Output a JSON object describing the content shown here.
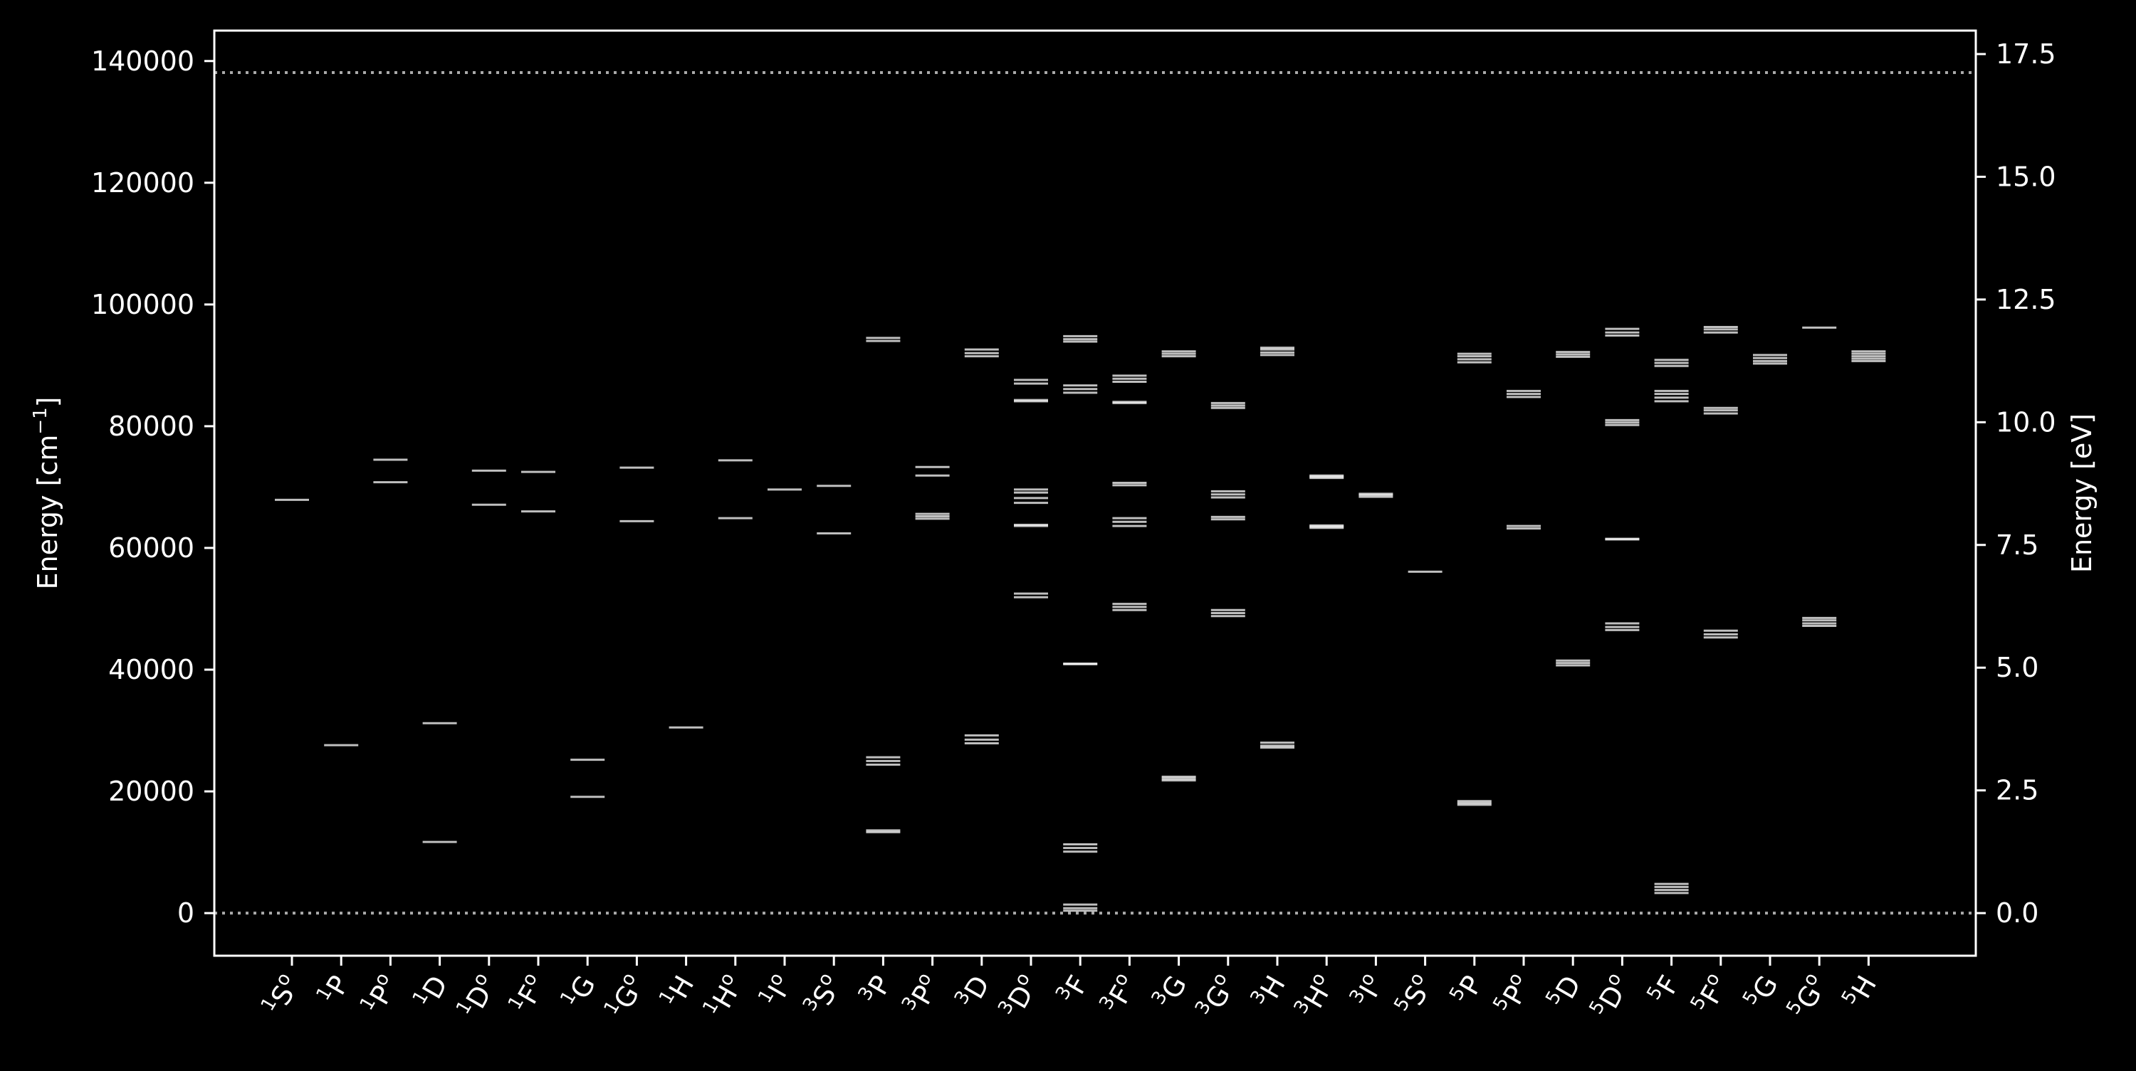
{
  "colors": {
    "background": "#000000",
    "axes": "#ffffff",
    "levels": "#ffffff",
    "reference_lines": "#aaaaaa"
  },
  "chart_data": {
    "type": "scatter",
    "mark": "horizontal-level-lines",
    "title": "",
    "ylabel_left": {
      "main": "Energy [cm",
      "sup": "−1",
      "close": "]"
    },
    "ylabel_right": "Energy [eV]",
    "ylim_left": [
      -7000,
      145000
    ],
    "ylim_right_ev": [
      -0.868,
      17.978
    ],
    "yticks_left": [
      0,
      20000,
      40000,
      60000,
      80000,
      100000,
      120000,
      140000
    ],
    "yticks_right": [
      "0.0",
      "2.5",
      "5.0",
      "7.5",
      "10.0",
      "12.5",
      "15.0",
      "17.5"
    ],
    "reference_lines_cm": [
      0,
      138100
    ],
    "grid": false,
    "categories": [
      {
        "mult": "1",
        "L": "S",
        "odd": true
      },
      {
        "mult": "1",
        "L": "P",
        "odd": false
      },
      {
        "mult": "1",
        "L": "P",
        "odd": true
      },
      {
        "mult": "1",
        "L": "D",
        "odd": false
      },
      {
        "mult": "1",
        "L": "D",
        "odd": true
      },
      {
        "mult": "1",
        "L": "F",
        "odd": true
      },
      {
        "mult": "1",
        "L": "G",
        "odd": false
      },
      {
        "mult": "1",
        "L": "G",
        "odd": true
      },
      {
        "mult": "1",
        "L": "H",
        "odd": false
      },
      {
        "mult": "1",
        "L": "H",
        "odd": true
      },
      {
        "mult": "1",
        "L": "I",
        "odd": true
      },
      {
        "mult": "3",
        "L": "S",
        "odd": true
      },
      {
        "mult": "3",
        "L": "P",
        "odd": false
      },
      {
        "mult": "3",
        "L": "P",
        "odd": true
      },
      {
        "mult": "3",
        "L": "D",
        "odd": false
      },
      {
        "mult": "3",
        "L": "D",
        "odd": true
      },
      {
        "mult": "3",
        "L": "F",
        "odd": false
      },
      {
        "mult": "3",
        "L": "F",
        "odd": true
      },
      {
        "mult": "3",
        "L": "G",
        "odd": false
      },
      {
        "mult": "3",
        "L": "G",
        "odd": true
      },
      {
        "mult": "3",
        "L": "H",
        "odd": false
      },
      {
        "mult": "3",
        "L": "H",
        "odd": true
      },
      {
        "mult": "3",
        "L": "I",
        "odd": true
      },
      {
        "mult": "5",
        "L": "S",
        "odd": true
      },
      {
        "mult": "5",
        "L": "P",
        "odd": false
      },
      {
        "mult": "5",
        "L": "P",
        "odd": true
      },
      {
        "mult": "5",
        "L": "D",
        "odd": false
      },
      {
        "mult": "5",
        "L": "D",
        "odd": true
      },
      {
        "mult": "5",
        "L": "F",
        "odd": false
      },
      {
        "mult": "5",
        "L": "F",
        "odd": true
      },
      {
        "mult": "5",
        "L": "G",
        "odd": false
      },
      {
        "mult": "5",
        "L": "G",
        "odd": true
      },
      {
        "mult": "5",
        "L": "H",
        "odd": false
      }
    ],
    "levels_cm": [
      [
        67900
      ],
      [
        27600
      ],
      [
        70800,
        74500
      ],
      [
        11700,
        31200
      ],
      [
        67100,
        72700
      ],
      [
        66000,
        72500
      ],
      [
        19100,
        25200
      ],
      [
        64400,
        73200
      ],
      [
        30500
      ],
      [
        64900,
        74400
      ],
      [
        69600
      ],
      [
        62400,
        70200
      ],
      [
        13300,
        13600,
        24400,
        25000,
        25600,
        94000,
        94500
      ],
      [
        64800,
        65200,
        65600,
        71900,
        73300
      ],
      [
        27900,
        28500,
        29200,
        91500,
        92000,
        92600
      ],
      [
        51900,
        52500,
        63600,
        63800,
        67400,
        68200,
        69100,
        69600,
        84100,
        84300,
        87000,
        87600
      ],
      [
        400,
        800,
        1400,
        10100,
        10700,
        11300,
        40900,
        41000,
        85500,
        86100,
        86700,
        93900,
        94300,
        94800
      ],
      [
        49800,
        50300,
        50800,
        63600,
        64300,
        64900,
        70300,
        70700,
        83800,
        84000,
        87300,
        87800,
        88300
      ],
      [
        21800,
        22100,
        22400,
        91500,
        91900,
        92300
      ],
      [
        48800,
        49300,
        49800,
        64700,
        65100,
        68300,
        68800,
        69300,
        83000,
        83400,
        83800
      ],
      [
        27200,
        27500,
        28000,
        91700,
        92100,
        92600,
        92900
      ],
      [
        71500,
        71700,
        71900,
        63300,
        63500,
        63700
      ],
      [
        68400,
        68700,
        68900
      ],
      [
        56100
      ],
      [
        17800,
        18100,
        18400,
        90500,
        91000,
        91500,
        91900
      ],
      [
        63200,
        63600,
        84800,
        85300,
        85800
      ],
      [
        40700,
        41100,
        41500,
        91400,
        91800,
        92200
      ],
      [
        61400,
        61500,
        46500,
        47000,
        47600,
        80200,
        80600,
        81000,
        94900,
        95400,
        96000
      ],
      [
        3300,
        3800,
        4300,
        4800,
        84100,
        84700,
        85300,
        85800,
        89900,
        90400,
        90900
      ],
      [
        45300,
        45800,
        46400,
        82100,
        82600,
        83000,
        95400,
        95900,
        96300
      ],
      [
        90300,
        90700,
        91200,
        91700
      ],
      [
        47200,
        47600,
        48100,
        48500,
        96200
      ],
      [
        90700,
        91100,
        91500,
        91900,
        92300
      ]
    ]
  }
}
